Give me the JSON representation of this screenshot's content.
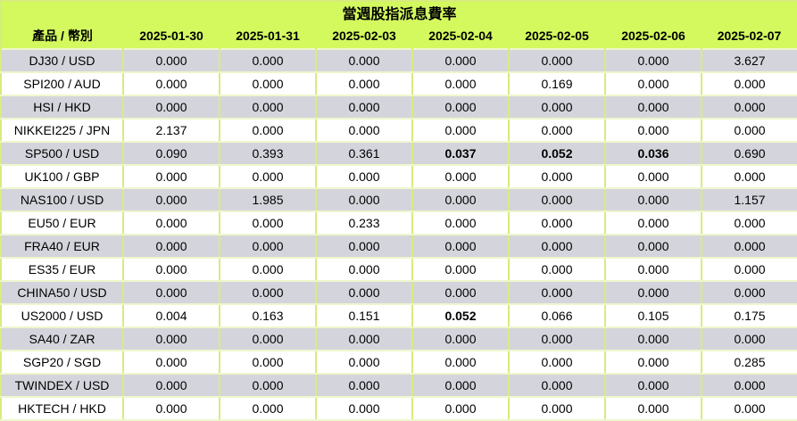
{
  "colors": {
    "header_bg": "#d3f95f",
    "row_gray_bg": "#d4d5dc",
    "row_white_bg": "#ffffff",
    "border_vertical": "#d7ec7e",
    "border_horizontal": "#eef6cc",
    "text": "#000000"
  },
  "chart_data": {
    "type": "table",
    "title": "當週股指派息費率",
    "corner_header": "產品 / 幣別",
    "date_columns": [
      "2025-01-30",
      "2025-01-31",
      "2025-02-03",
      "2025-02-04",
      "2025-02-05",
      "2025-02-06",
      "2025-02-07"
    ],
    "rows": [
      {
        "product": "DJ30 / USD",
        "values": [
          "0.000",
          "0.000",
          "0.000",
          "0.000",
          "0.000",
          "0.000",
          "3.627"
        ],
        "bold_columns": []
      },
      {
        "product": "SPI200 / AUD",
        "values": [
          "0.000",
          "0.000",
          "0.000",
          "0.000",
          "0.169",
          "0.000",
          "0.000"
        ],
        "bold_columns": []
      },
      {
        "product": "HSI / HKD",
        "values": [
          "0.000",
          "0.000",
          "0.000",
          "0.000",
          "0.000",
          "0.000",
          "0.000"
        ],
        "bold_columns": []
      },
      {
        "product": "NIKKEI225 / JPN",
        "values": [
          "2.137",
          "0.000",
          "0.000",
          "0.000",
          "0.000",
          "0.000",
          "0.000"
        ],
        "bold_columns": []
      },
      {
        "product": "SP500 / USD",
        "values": [
          "0.090",
          "0.393",
          "0.361",
          "0.037",
          "0.052",
          "0.036",
          "0.690"
        ],
        "bold_columns": [
          3,
          4,
          5
        ]
      },
      {
        "product": "UK100 / GBP",
        "values": [
          "0.000",
          "0.000",
          "0.000",
          "0.000",
          "0.000",
          "0.000",
          "0.000"
        ],
        "bold_columns": []
      },
      {
        "product": "NAS100 / USD",
        "values": [
          "0.000",
          "1.985",
          "0.000",
          "0.000",
          "0.000",
          "0.000",
          "1.157"
        ],
        "bold_columns": []
      },
      {
        "product": "EU50 / EUR",
        "values": [
          "0.000",
          "0.000",
          "0.233",
          "0.000",
          "0.000",
          "0.000",
          "0.000"
        ],
        "bold_columns": []
      },
      {
        "product": "FRA40 / EUR",
        "values": [
          "0.000",
          "0.000",
          "0.000",
          "0.000",
          "0.000",
          "0.000",
          "0.000"
        ],
        "bold_columns": []
      },
      {
        "product": "ES35 / EUR",
        "values": [
          "0.000",
          "0.000",
          "0.000",
          "0.000",
          "0.000",
          "0.000",
          "0.000"
        ],
        "bold_columns": []
      },
      {
        "product": "CHINA50 / USD",
        "values": [
          "0.000",
          "0.000",
          "0.000",
          "0.000",
          "0.000",
          "0.000",
          "0.000"
        ],
        "bold_columns": []
      },
      {
        "product": "US2000 / USD",
        "values": [
          "0.004",
          "0.163",
          "0.151",
          "0.052",
          "0.066",
          "0.105",
          "0.175"
        ],
        "bold_columns": [
          3
        ]
      },
      {
        "product": "SA40 / ZAR",
        "values": [
          "0.000",
          "0.000",
          "0.000",
          "0.000",
          "0.000",
          "0.000",
          "0.000"
        ],
        "bold_columns": []
      },
      {
        "product": "SGP20 / SGD",
        "values": [
          "0.000",
          "0.000",
          "0.000",
          "0.000",
          "0.000",
          "0.000",
          "0.285"
        ],
        "bold_columns": []
      },
      {
        "product": "TWINDEX / USD",
        "values": [
          "0.000",
          "0.000",
          "0.000",
          "0.000",
          "0.000",
          "0.000",
          "0.000"
        ],
        "bold_columns": []
      },
      {
        "product": "HKTECH / HKD",
        "values": [
          "0.000",
          "0.000",
          "0.000",
          "0.000",
          "0.000",
          "0.000",
          "0.000"
        ],
        "bold_columns": []
      }
    ]
  }
}
